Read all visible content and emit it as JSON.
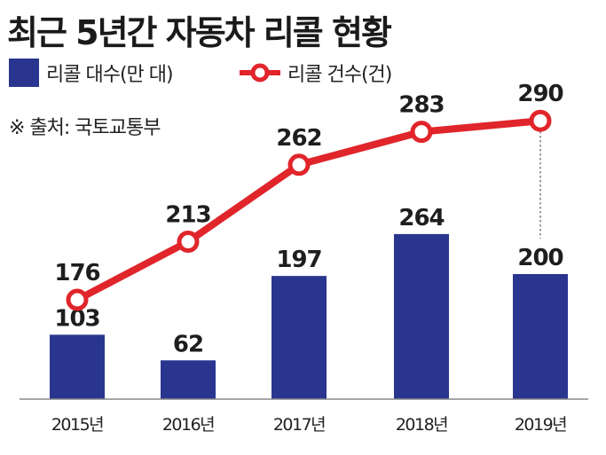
{
  "title": "최근 5년간 자동차 리콜 현황",
  "legend": {
    "bar_label": "리콜 대수(만 대)",
    "line_label": "리콜 건수(건)"
  },
  "source": "※ 출처: 국토교통부",
  "colors": {
    "bar": "#2a3590",
    "line": "#e0252b"
  },
  "chart_data": {
    "type": "bar+line",
    "categories": [
      "2015년",
      "2016년",
      "2017년",
      "2018년",
      "2019년"
    ],
    "series": [
      {
        "name": "리콜 대수(만 대)",
        "type": "bar",
        "values": [
          103,
          62,
          197,
          264,
          200
        ]
      },
      {
        "name": "리콜 건수(건)",
        "type": "line",
        "values": [
          176,
          213,
          262,
          283,
          290
        ]
      }
    ],
    "title": "최근 5년간 자동차 리콜 현황",
    "legend_position": "top-left",
    "grid": false
  }
}
